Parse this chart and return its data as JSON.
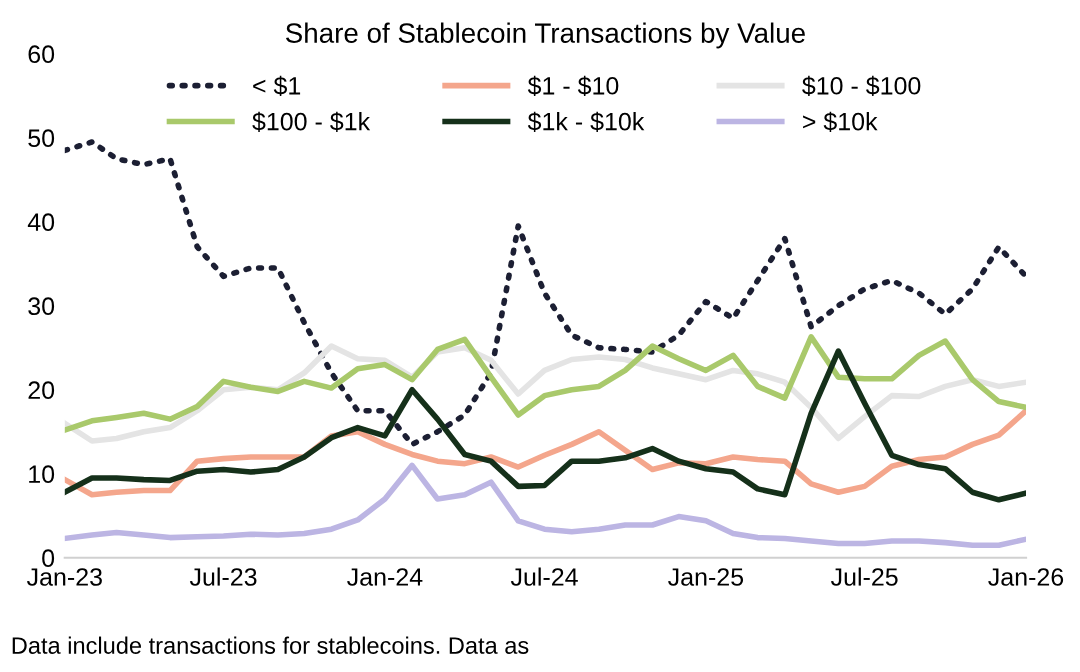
{
  "chart_data": {
    "type": "line",
    "title": "Share of Stablecoin Transactions by Value",
    "x": [
      "2023-01",
      "2023-02",
      "2023-03",
      "2023-04",
      "2023-05",
      "2023-06",
      "2023-07",
      "2023-08",
      "2023-09",
      "2023-10",
      "2023-11",
      "2023-12",
      "2024-01",
      "2024-02",
      "2024-03",
      "2024-04",
      "2024-05",
      "2024-06",
      "2024-07",
      "2024-08",
      "2024-09",
      "2024-10",
      "2024-11",
      "2024-12",
      "2025-01",
      "2025-02",
      "2025-03",
      "2025-04",
      "2025-05",
      "2025-06",
      "2025-07",
      "2025-08",
      "2025-09",
      "2025-10",
      "2025-11",
      "2025-12",
      "2026-01"
    ],
    "series": [
      {
        "name": "< $1",
        "color": "#1c1f33",
        "line_style": "dotted",
        "values": [
          48.5,
          49.5,
          47.5,
          46.8,
          47.5,
          37,
          33.5,
          34.5,
          34.5,
          28,
          22,
          17.5,
          17.5,
          13.5,
          15,
          17,
          22,
          39.5,
          31.5,
          26.5,
          25,
          24.8,
          24.5,
          26.5,
          30.5,
          28.5,
          33,
          38,
          27.5,
          30,
          32,
          33,
          31.5,
          29,
          32,
          37,
          33.5
        ]
      },
      {
        "name": "$1 - $10",
        "color": "#f4a68c",
        "values": [
          9.3,
          7.5,
          7.8,
          8,
          8,
          11.5,
          11.8,
          12,
          12,
          12,
          14.5,
          15,
          13.5,
          12.3,
          11.5,
          11.2,
          12,
          10.8,
          12.2,
          13.5,
          15,
          12.8,
          10.5,
          11.3,
          11.2,
          12,
          11.7,
          11.5,
          8.8,
          7.8,
          8.5,
          10.9,
          11.7,
          12,
          13.5,
          14.6,
          17.5
        ]
      },
      {
        "name": "$10 - $100",
        "color": "#e4e4e4",
        "values": [
          16,
          13.9,
          14.2,
          15,
          15.5,
          17.5,
          20,
          20.3,
          20,
          22,
          25.2,
          23.7,
          23.5,
          21.5,
          24.5,
          25,
          23.5,
          19.5,
          22.3,
          23.6,
          23.9,
          23.6,
          22.6,
          21.9,
          21.2,
          22.3,
          21.9,
          20.9,
          17.9,
          14.2,
          16.8,
          19.3,
          19.2,
          20.4,
          21.2,
          20.4,
          20.9
        ]
      },
      {
        "name": "$100 - $1k",
        "color": "#a9c96b",
        "values": [
          15.2,
          16.3,
          16.7,
          17.2,
          16.5,
          18,
          21,
          20.3,
          19.8,
          21,
          20.2,
          22.5,
          23,
          21.2,
          24.8,
          26,
          21.5,
          17,
          19.3,
          20,
          20.4,
          22.3,
          25.2,
          23.7,
          22.3,
          24.1,
          20.4,
          19,
          26.3,
          21.5,
          21.3,
          21.3,
          24.1,
          25.8,
          21.2,
          18.6,
          17.9
        ]
      },
      {
        "name": "$1k - $10k",
        "color": "#15301a",
        "values": [
          7.8,
          9.5,
          9.5,
          9.3,
          9.2,
          10.3,
          10.5,
          10.2,
          10.5,
          12,
          14.3,
          15.5,
          14.5,
          20,
          16.5,
          12.3,
          11.5,
          8.5,
          8.6,
          11.5,
          11.5,
          11.9,
          13,
          11.5,
          10.6,
          10.2,
          8.2,
          7.5,
          17.2,
          24.6,
          18.4,
          12.2,
          11.1,
          10.6,
          7.8,
          6.9,
          7.7
        ]
      },
      {
        "name": "> $10k",
        "color": "#bcb5e3",
        "values": [
          2.3,
          2.7,
          3,
          2.7,
          2.4,
          2.5,
          2.6,
          2.8,
          2.7,
          2.9,
          3.4,
          4.5,
          7,
          11,
          7,
          7.5,
          9,
          4.4,
          3.4,
          3.1,
          3.4,
          3.9,
          3.9,
          4.9,
          4.4,
          2.9,
          2.4,
          2.3,
          2,
          1.7,
          1.7,
          2,
          2,
          1.8,
          1.5,
          1.5,
          2.2
        ]
      }
    ],
    "xlim": [
      "2023-01",
      "2026-01"
    ],
    "xticks": [
      {
        "value": "2023-01",
        "label": "Jan-23"
      },
      {
        "value": "2023-07",
        "label": "Jul-23"
      },
      {
        "value": "2024-01",
        "label": "Jan-24"
      },
      {
        "value": "2024-07",
        "label": "Jul-24"
      },
      {
        "value": "2025-01",
        "label": "Jan-25"
      },
      {
        "value": "2025-07",
        "label": "Jul-25"
      },
      {
        "value": "2026-01",
        "label": "Jan-26"
      }
    ],
    "ylim": [
      0,
      60
    ],
    "yticks": [
      0,
      10,
      20,
      30,
      40,
      50,
      60
    ],
    "grid": false,
    "legend": "top",
    "marker": "none",
    "line_style": "solid",
    "annotations": [
      "Data include transactions for stablecoins. Data as"
    ]
  }
}
